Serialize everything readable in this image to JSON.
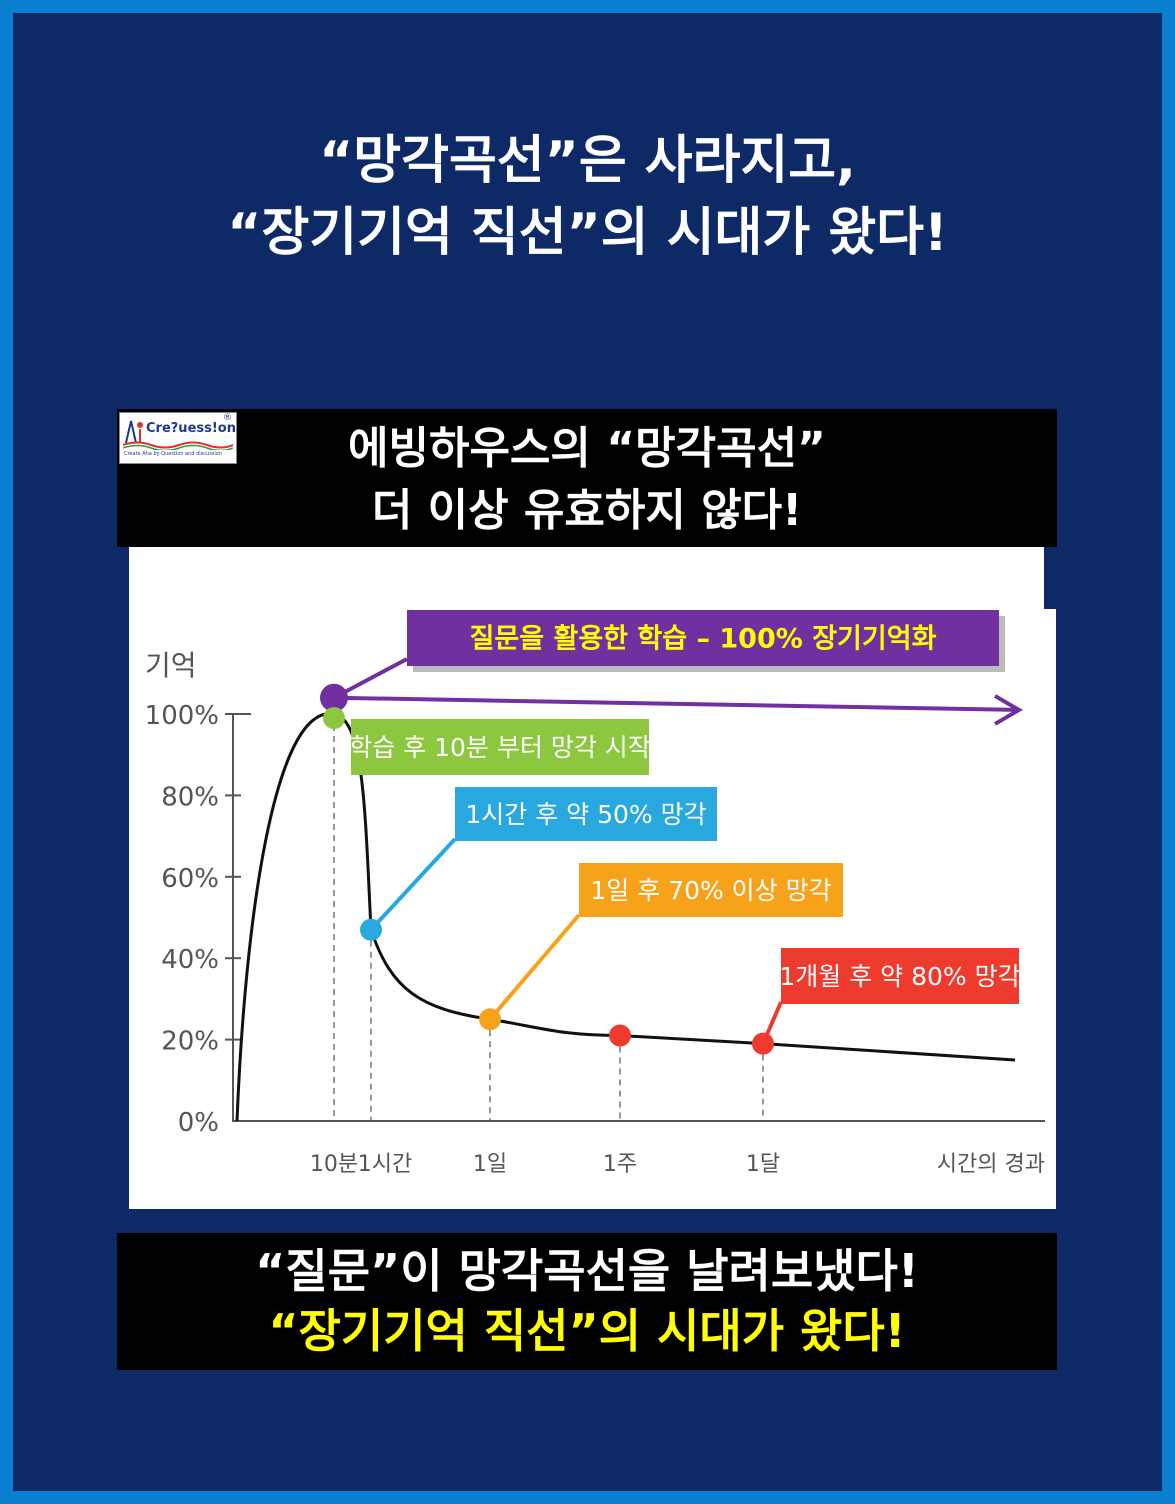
{
  "headline": {
    "line1": "“망각곡선”은 사라지고,",
    "line2": "“장기기억 직선”의 시대가 왔다!"
  },
  "logo": {
    "text": "Cre?uess!on",
    "registered": "®",
    "tagline": "Create Aha by Question and discussion"
  },
  "top_title": {
    "line1": "에빙하우스의 “망각곡선”",
    "line2": "더 이상 유효하지 않다!"
  },
  "bottom": {
    "line1": "“질문”이 망각곡선을 날려보냈다!",
    "line2": "“장기기억 직선”의 시대가 왔다!"
  },
  "chart_data": {
    "type": "line",
    "title": "",
    "ylabel": "기억",
    "xlabel": "시간의 경과",
    "yticks": [
      "0%",
      "20%",
      "40%",
      "60%",
      "80%",
      "100%"
    ],
    "ylim": [
      0,
      100
    ],
    "x_ticks": [
      "10분",
      "1시간",
      "1일",
      "1주",
      "1달"
    ],
    "series": [
      {
        "color": "#111111",
        "points": [
          {
            "x": "0",
            "y": 0
          },
          {
            "x": "10분",
            "y": 100
          },
          {
            "x": "1시간",
            "y": 47
          },
          {
            "x": "1일",
            "y": 25
          },
          {
            "x": "1주",
            "y": 21
          },
          {
            "x": "1달",
            "y": 19
          }
        ]
      },
      {
        "color": "#7030a0",
        "points": [
          {
            "x": "10분",
            "y": 104
          },
          {
            "x": "end",
            "y": 101
          }
        ]
      }
    ],
    "markers": [
      {
        "x": "10분",
        "y": 104,
        "color": "#7030a0"
      },
      {
        "x": "10분",
        "y": 99,
        "color": "#8dc63f"
      },
      {
        "x": "1시간",
        "y": 47,
        "color": "#29a8e0"
      },
      {
        "x": "1일",
        "y": 25,
        "color": "#f7a21b"
      },
      {
        "x": "1주",
        "y": 21,
        "color": "#ee3b2e"
      },
      {
        "x": "1달",
        "y": 19,
        "color": "#ee3b2e"
      }
    ],
    "annotations": [
      {
        "text": "질문을 활용한 학습 – 100% 장기기억화",
        "bg": "#7030a0",
        "fg": "#ffff00"
      },
      {
        "text": "학습 후 10분 부터 망각 시작",
        "bg": "#8dc63f",
        "fg": "#ffffff"
      },
      {
        "text": "1시간 후 약 50% 망각",
        "bg": "#29a8e0",
        "fg": "#ffffff"
      },
      {
        "text": "1일 후 70% 이상 망각",
        "bg": "#f7a21b",
        "fg": "#ffffff"
      },
      {
        "text": "1개월 후 약 80% 망각",
        "bg": "#ee3b2e",
        "fg": "#ffffff"
      }
    ]
  }
}
